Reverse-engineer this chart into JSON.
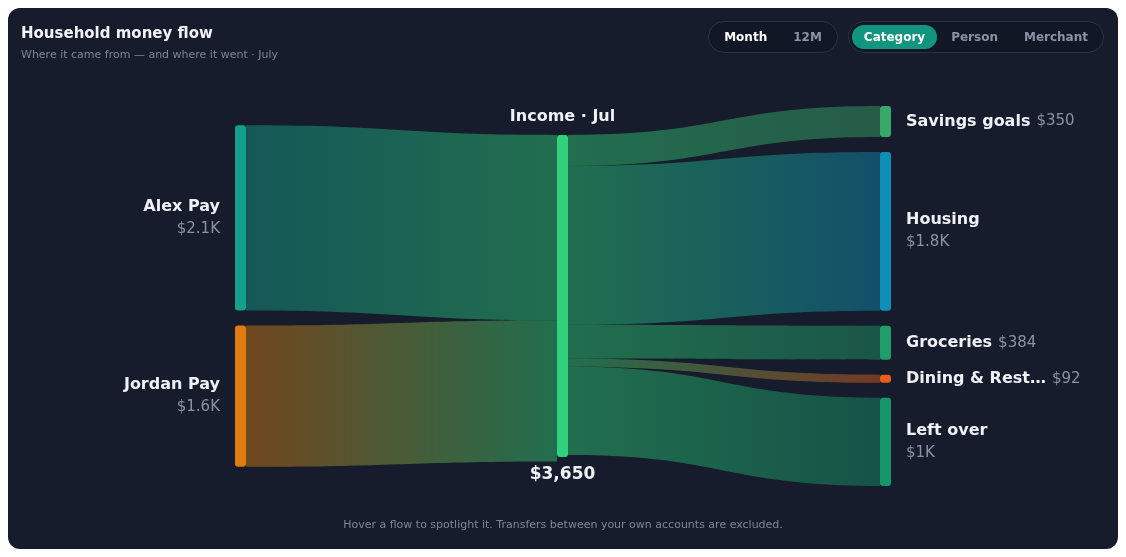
{
  "chart_data": {
    "type": "other",
    "title": "Household money flow",
    "subtitle": "Where it came from — and where it went · July",
    "categories": [
      "Alex Pay",
      "Jordan Pay",
      "Income · Jul",
      "Savings goals",
      "Housing",
      "Groceries",
      "Dining & Rest…",
      "Left over"
    ],
    "values": [
      2100,
      1600,
      3650,
      350,
      1800,
      384,
      92,
      1000
    ],
    "value_labels": [
      "$2.1K",
      "$1.6K",
      "$3,650",
      "$350",
      "$1.8K",
      "$384",
      "$92",
      "$1K"
    ],
    "colors": [
      "#14a08c",
      "#e07b10",
      "#2fd27a",
      "#3aa86b",
      "#0e8fb8",
      "#1f9d6b",
      "#e85d1a",
      "#14976a"
    ],
    "annotations": [
      "Month",
      "12M",
      "Category",
      "Person",
      "Merchant",
      "Hover a flow to spotlight it. Transfers between your own accounts are excluded."
    ]
  }
}
